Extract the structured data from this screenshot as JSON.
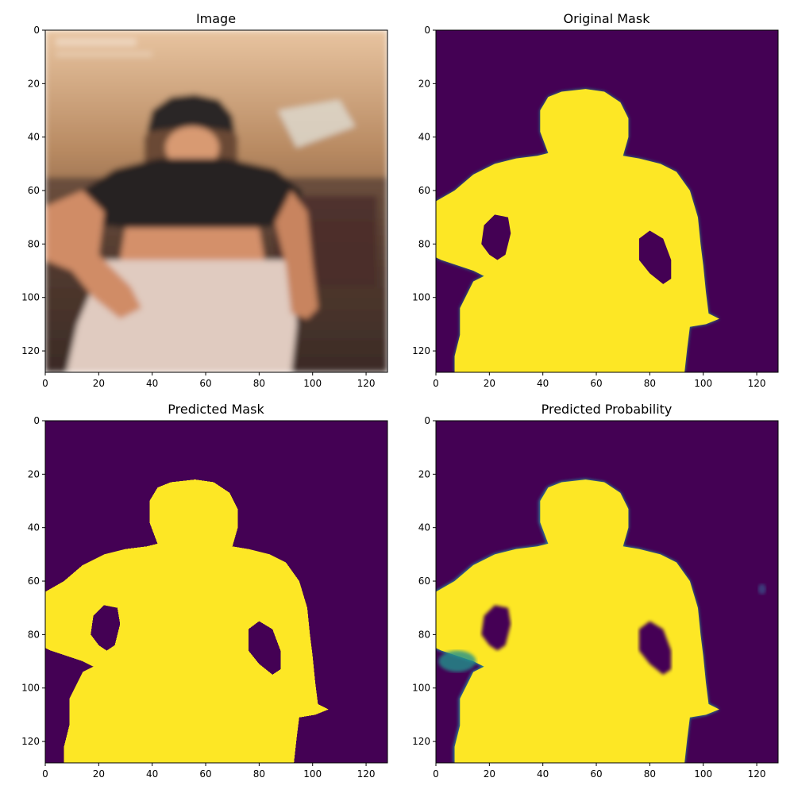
{
  "colors": {
    "background": "#440154",
    "foreground": "#fde725",
    "edge": "#21918c",
    "mid": "#3b528b"
  },
  "chart_data": [
    {
      "type": "image",
      "title": "Image",
      "xlim": [
        0,
        128
      ],
      "ylim": [
        128,
        0
      ],
      "xticks": [
        0,
        20,
        40,
        60,
        80,
        100,
        120
      ],
      "yticks": [
        0,
        20,
        40,
        60,
        80,
        100,
        120
      ],
      "content": "photo"
    },
    {
      "type": "heatmap",
      "title": "Original Mask",
      "xlim": [
        0,
        128
      ],
      "ylim": [
        128,
        0
      ],
      "xticks": [
        0,
        20,
        40,
        60,
        80,
        100,
        120
      ],
      "yticks": [
        0,
        20,
        40,
        60,
        80,
        100,
        120
      ],
      "content": "mask-smooth"
    },
    {
      "type": "heatmap",
      "title": "Predicted Mask",
      "xlim": [
        0,
        128
      ],
      "ylim": [
        128,
        0
      ],
      "xticks": [
        0,
        20,
        40,
        60,
        80,
        100,
        120
      ],
      "yticks": [
        0,
        20,
        40,
        60,
        80,
        100,
        120
      ],
      "content": "mask-binary"
    },
    {
      "type": "heatmap",
      "title": "Predicted Probability",
      "xlim": [
        0,
        128
      ],
      "ylim": [
        128,
        0
      ],
      "xticks": [
        0,
        20,
        40,
        60,
        80,
        100,
        120
      ],
      "yticks": [
        0,
        20,
        40,
        60,
        80,
        100,
        120
      ],
      "content": "probability"
    }
  ]
}
